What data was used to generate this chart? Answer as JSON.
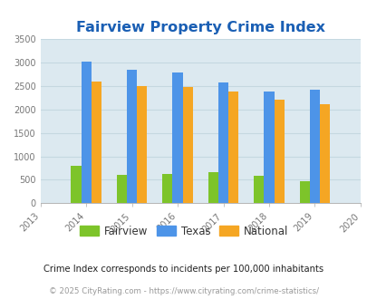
{
  "title": "Fairview Property Crime Index",
  "title_color": "#1a5fb4",
  "years": [
    2014,
    2015,
    2016,
    2017,
    2018,
    2019
  ],
  "x_ticks": [
    2013,
    2014,
    2015,
    2016,
    2017,
    2018,
    2019,
    2020
  ],
  "fairview": [
    800,
    600,
    620,
    660,
    580,
    475
  ],
  "texas": [
    3010,
    2840,
    2775,
    2580,
    2380,
    2410
  ],
  "national": [
    2600,
    2500,
    2475,
    2385,
    2210,
    2110
  ],
  "fairview_color": "#7dc42a",
  "texas_color": "#4d94e8",
  "national_color": "#f5a623",
  "ylim": [
    0,
    3500
  ],
  "yticks": [
    0,
    500,
    1000,
    1500,
    2000,
    2500,
    3000,
    3500
  ],
  "plot_bg": "#dce9f0",
  "grid_color": "#c5d8e0",
  "legend_labels": [
    "Fairview",
    "Texas",
    "National"
  ],
  "footnote1": "Crime Index corresponds to incidents per 100,000 inhabitants",
  "footnote2": "© 2025 CityRating.com - https://www.cityrating.com/crime-statistics/",
  "footnote1_color": "#222222",
  "footnote2_color": "#999999",
  "bar_width": 0.22
}
